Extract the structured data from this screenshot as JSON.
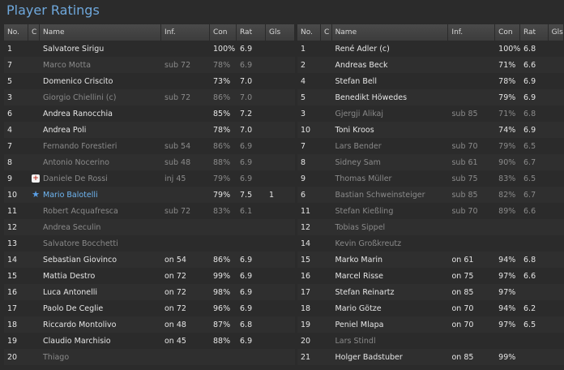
{
  "title": "Player Ratings",
  "columns": {
    "no": "No.",
    "c": "C",
    "name": "Name",
    "inf": "Inf.",
    "con": "Con",
    "rat": "Rat",
    "gls": "Gls"
  },
  "left_rows": [
    {
      "no": "1",
      "name": "Salvatore Sirigu",
      "inf": "",
      "con": "100%",
      "rat": "6.9",
      "gls": "",
      "dim": false
    },
    {
      "no": "7",
      "name": "Marco Motta",
      "inf": "sub 72",
      "con": "78%",
      "rat": "6.9",
      "gls": "",
      "dim": true
    },
    {
      "no": "5",
      "name": "Domenico Criscito",
      "inf": "",
      "con": "73%",
      "rat": "7.0",
      "gls": "",
      "dim": false
    },
    {
      "no": "3",
      "name": "Giorgio Chiellini (c)",
      "inf": "sub 72",
      "con": "86%",
      "rat": "7.0",
      "gls": "",
      "dim": true
    },
    {
      "no": "6",
      "name": "Andrea Ranocchia",
      "inf": "",
      "con": "85%",
      "rat": "7.2",
      "gls": "",
      "dim": false
    },
    {
      "no": "4",
      "name": "Andrea Poli",
      "inf": "",
      "con": "78%",
      "rat": "7.0",
      "gls": "",
      "dim": false
    },
    {
      "no": "7",
      "name": "Fernando Forestieri",
      "inf": "sub 54",
      "con": "86%",
      "rat": "6.9",
      "gls": "",
      "dim": true
    },
    {
      "no": "8",
      "name": "Antonio Nocerino",
      "inf": "sub 48",
      "con": "88%",
      "rat": "6.9",
      "gls": "",
      "dim": true
    },
    {
      "no": "9",
      "name": "Daniele De Rossi",
      "inf": "inj 45",
      "con": "79%",
      "rat": "6.9",
      "gls": "",
      "dim": true,
      "icon": "injury-cross-icon"
    },
    {
      "no": "10",
      "name": "Mario Balotelli",
      "inf": "",
      "con": "79%",
      "rat": "7.5",
      "gls": "1",
      "dim": false,
      "hi": true,
      "icon": "star-icon"
    },
    {
      "no": "11",
      "name": "Robert Acquafresca",
      "inf": "sub 72",
      "con": "83%",
      "rat": "6.1",
      "gls": "",
      "dim": true
    },
    {
      "no": "12",
      "name": "Andrea Seculin",
      "inf": "",
      "con": "",
      "rat": "",
      "gls": "",
      "dim": true
    },
    {
      "no": "13",
      "name": "Salvatore Bocchetti",
      "inf": "",
      "con": "",
      "rat": "",
      "gls": "",
      "dim": true
    },
    {
      "no": "14",
      "name": "Sebastian Giovinco",
      "inf": "on 54",
      "con": "86%",
      "rat": "6.9",
      "gls": "",
      "dim": false
    },
    {
      "no": "15",
      "name": "Mattia Destro",
      "inf": "on 72",
      "con": "99%",
      "rat": "6.9",
      "gls": "",
      "dim": false
    },
    {
      "no": "16",
      "name": "Luca Antonelli",
      "inf": "on 72",
      "con": "98%",
      "rat": "6.9",
      "gls": "",
      "dim": false
    },
    {
      "no": "17",
      "name": "Paolo De Ceglie",
      "inf": "on 72",
      "con": "96%",
      "rat": "6.9",
      "gls": "",
      "dim": false
    },
    {
      "no": "18",
      "name": "Riccardo Montolivo",
      "inf": "on 48",
      "con": "87%",
      "rat": "6.8",
      "gls": "",
      "dim": false
    },
    {
      "no": "19",
      "name": "Claudio Marchisio",
      "inf": "on 45",
      "con": "88%",
      "rat": "6.9",
      "gls": "",
      "dim": false
    },
    {
      "no": "20",
      "name": "Thiago",
      "inf": "",
      "con": "",
      "rat": "",
      "gls": "",
      "dim": true
    }
  ],
  "right_rows": [
    {
      "no": "1",
      "name": "René Adler (c)",
      "inf": "",
      "con": "100%",
      "rat": "6.8",
      "dim": false
    },
    {
      "no": "2",
      "name": "Andreas Beck",
      "inf": "",
      "con": "71%",
      "rat": "6.6",
      "dim": false
    },
    {
      "no": "4",
      "name": "Stefan Bell",
      "inf": "",
      "con": "78%",
      "rat": "6.9",
      "dim": false
    },
    {
      "no": "5",
      "name": "Benedikt Höwedes",
      "inf": "",
      "con": "79%",
      "rat": "6.9",
      "dim": false
    },
    {
      "no": "3",
      "name": "Gjergji Alikaj",
      "inf": "sub 85",
      "con": "71%",
      "rat": "6.8",
      "dim": true
    },
    {
      "no": "10",
      "name": "Toni Kroos",
      "inf": "",
      "con": "74%",
      "rat": "6.9",
      "dim": false
    },
    {
      "no": "7",
      "name": "Lars Bender",
      "inf": "sub 70",
      "con": "79%",
      "rat": "6.5",
      "dim": true
    },
    {
      "no": "8",
      "name": "Sidney Sam",
      "inf": "sub 61",
      "con": "90%",
      "rat": "6.7",
      "dim": true
    },
    {
      "no": "9",
      "name": "Thomas Müller",
      "inf": "sub 75",
      "con": "83%",
      "rat": "6.5",
      "dim": true
    },
    {
      "no": "6",
      "name": "Bastian Schweinsteiger",
      "inf": "sub 85",
      "con": "82%",
      "rat": "6.7",
      "dim": true
    },
    {
      "no": "11",
      "name": "Stefan Kießling",
      "inf": "sub 70",
      "con": "89%",
      "rat": "6.6",
      "dim": true
    },
    {
      "no": "12",
      "name": "Tobias Sippel",
      "inf": "",
      "con": "",
      "rat": "",
      "dim": true
    },
    {
      "no": "14",
      "name": "Kevin Großkreutz",
      "inf": "",
      "con": "",
      "rat": "",
      "dim": true
    },
    {
      "no": "15",
      "name": "Marko Marin",
      "inf": "on 61",
      "con": "94%",
      "rat": "6.8",
      "dim": false
    },
    {
      "no": "16",
      "name": "Marcel Risse",
      "inf": "on 75",
      "con": "97%",
      "rat": "6.6",
      "dim": false
    },
    {
      "no": "17",
      "name": "Stefan Reinartz",
      "inf": "on 85",
      "con": "97%",
      "rat": "",
      "dim": false
    },
    {
      "no": "18",
      "name": "Mario Götze",
      "inf": "on 70",
      "con": "94%",
      "rat": "6.2",
      "dim": false
    },
    {
      "no": "19",
      "name": "Peniel Mlapa",
      "inf": "on 70",
      "con": "97%",
      "rat": "6.5",
      "dim": false
    },
    {
      "no": "20",
      "name": "Lars Stindl",
      "inf": "",
      "con": "",
      "rat": "",
      "dim": true
    },
    {
      "no": "21",
      "name": "Holger Badstuber",
      "inf": "on 85",
      "con": "99%",
      "rat": "",
      "dim": false
    }
  ]
}
